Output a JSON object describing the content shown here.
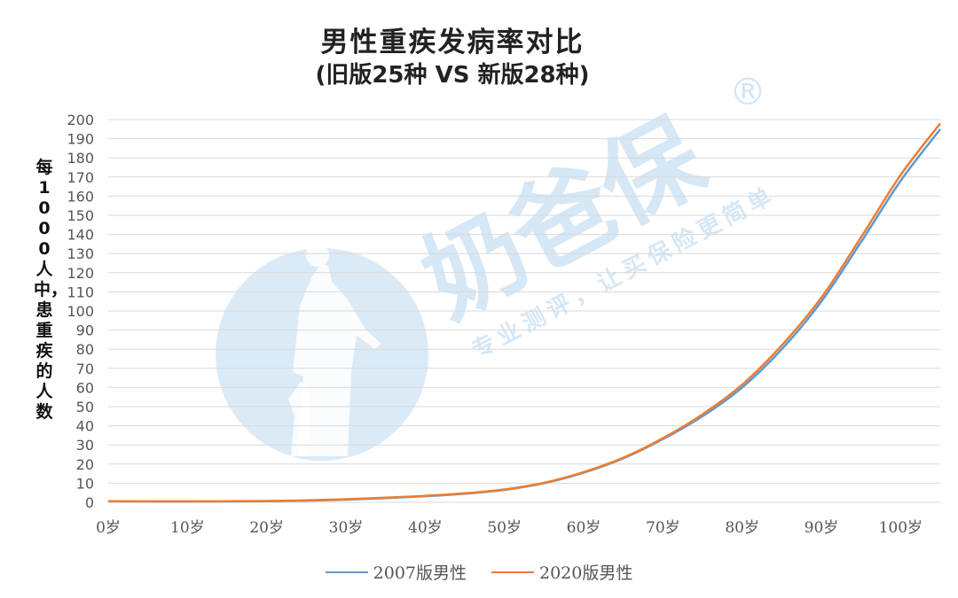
{
  "chart_data": {
    "type": "line",
    "title": "男性重疾发病率对比",
    "subtitle": "(旧版25种 VS 新版28种)",
    "ylabel": "每1000人中，患重疾的人数",
    "xlabel": "",
    "ylim": [
      0,
      200
    ],
    "yticks": [
      0,
      10,
      20,
      30,
      40,
      50,
      60,
      70,
      80,
      90,
      100,
      110,
      120,
      130,
      140,
      150,
      160,
      170,
      180,
      190,
      200
    ],
    "xlim": [
      0,
      105
    ],
    "xticks": [
      0,
      10,
      20,
      30,
      40,
      50,
      60,
      70,
      80,
      90,
      100
    ],
    "xtick_labels": [
      "0岁",
      "10岁",
      "20岁",
      "30岁",
      "40岁",
      "50岁",
      "60岁",
      "70岁",
      "80岁",
      "90岁",
      "100岁"
    ],
    "grid": true,
    "legend_position": "bottom",
    "series": [
      {
        "name": "2007版男性",
        "color": "#5b9bd5",
        "x": [
          0,
          10,
          20,
          25,
          30,
          35,
          40,
          45,
          50,
          55,
          60,
          65,
          70,
          75,
          80,
          85,
          90,
          95,
          100,
          105
        ],
        "y": [
          0.5,
          0.4,
          0.6,
          0.9,
          1.4,
          2.2,
          3.2,
          4.5,
          6.5,
          10,
          15.5,
          23,
          33,
          45,
          60,
          80,
          105,
          136,
          168,
          195
        ]
      },
      {
        "name": "2020版男性",
        "color": "#ed7d31",
        "x": [
          0,
          10,
          20,
          25,
          30,
          35,
          40,
          45,
          50,
          55,
          60,
          65,
          70,
          75,
          80,
          85,
          90,
          95,
          100,
          105
        ],
        "y": [
          0.6,
          0.5,
          0.7,
          1.0,
          1.6,
          2.4,
          3.4,
          4.7,
          6.7,
          10.2,
          15.8,
          23.3,
          33.5,
          46,
          61.5,
          82,
          107,
          138.5,
          171,
          198
        ]
      }
    ]
  },
  "watermark": {
    "brand": "奶爸保",
    "registered": "®",
    "slogan": "专业测评，让买保险更简单",
    "color": "#cfe3f4"
  }
}
